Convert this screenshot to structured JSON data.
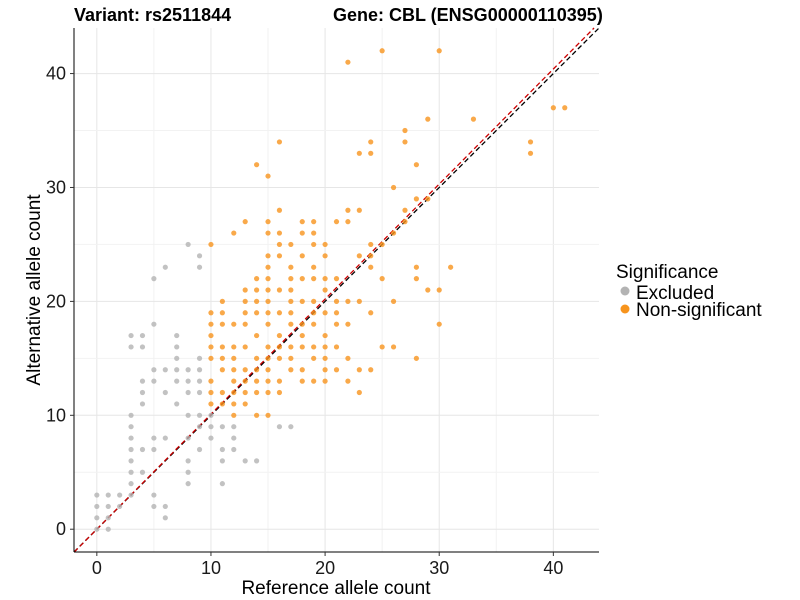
{
  "chart_data": {
    "type": "scatter",
    "title_left": "Variant: rs2511844",
    "title_right": "Gene: CBL (ENSG00000110395)",
    "xlabel": "Reference allele count",
    "ylabel": "Alternative allele count",
    "xlim": [
      -2,
      44
    ],
    "ylim": [
      -2,
      44
    ],
    "x_ticks": [
      0,
      10,
      20,
      30,
      40
    ],
    "y_ticks": [
      0,
      10,
      20,
      30,
      40
    ],
    "grid": true,
    "legend": {
      "title": "Significance",
      "position": "right",
      "entries": [
        {
          "label": "Excluded",
          "color": "#b3b3b3"
        },
        {
          "label": "Non-significant",
          "color": "#f7941d"
        }
      ]
    },
    "reference_lines": [
      {
        "slope": 1,
        "intercept": 0,
        "color": "#000000",
        "style": "dashed"
      },
      {
        "slope": 1.01,
        "intercept": 0,
        "color": "#cc0000",
        "style": "dashed"
      }
    ],
    "series": [
      {
        "name": "Excluded",
        "color": "#b3b3b3",
        "points": [
          [
            0,
            0
          ],
          [
            0,
            1
          ],
          [
            0,
            2
          ],
          [
            0,
            3
          ],
          [
            1,
            0
          ],
          [
            1,
            1
          ],
          [
            1,
            2
          ],
          [
            1,
            3
          ],
          [
            2,
            2
          ],
          [
            2,
            3
          ],
          [
            3,
            3
          ],
          [
            3,
            4
          ],
          [
            3,
            5
          ],
          [
            3,
            6
          ],
          [
            3,
            7
          ],
          [
            3,
            8
          ],
          [
            3,
            9
          ],
          [
            3,
            10
          ],
          [
            3,
            16
          ],
          [
            3,
            17
          ],
          [
            4,
            5
          ],
          [
            4,
            7
          ],
          [
            4,
            11
          ],
          [
            4,
            12
          ],
          [
            4,
            13
          ],
          [
            4,
            16
          ],
          [
            4,
            17
          ],
          [
            5,
            2
          ],
          [
            5,
            3
          ],
          [
            5,
            7
          ],
          [
            5,
            8
          ],
          [
            5,
            13
          ],
          [
            5,
            14
          ],
          [
            5,
            18
          ],
          [
            5,
            22
          ],
          [
            6,
            1
          ],
          [
            6,
            2
          ],
          [
            6,
            8
          ],
          [
            6,
            12
          ],
          [
            6,
            14
          ],
          [
            6,
            23
          ],
          [
            7,
            11
          ],
          [
            7,
            13
          ],
          [
            7,
            14
          ],
          [
            7,
            15
          ],
          [
            7,
            16
          ],
          [
            7,
            17
          ],
          [
            8,
            4
          ],
          [
            8,
            5
          ],
          [
            8,
            6
          ],
          [
            8,
            8
          ],
          [
            8,
            10
          ],
          [
            8,
            12
          ],
          [
            8,
            13
          ],
          [
            8,
            14
          ],
          [
            8,
            25
          ],
          [
            9,
            7
          ],
          [
            9,
            9
          ],
          [
            9,
            10
          ],
          [
            9,
            12
          ],
          [
            9,
            13
          ],
          [
            9,
            14
          ],
          [
            9,
            15
          ],
          [
            9,
            23
          ],
          [
            9,
            24
          ],
          [
            10,
            8
          ],
          [
            10,
            9
          ],
          [
            10,
            10
          ],
          [
            11,
            4
          ],
          [
            11,
            6
          ],
          [
            11,
            7
          ],
          [
            11,
            9
          ],
          [
            12,
            7
          ],
          [
            12,
            8
          ],
          [
            12,
            9
          ],
          [
            13,
            6
          ],
          [
            14,
            6
          ],
          [
            16,
            9
          ],
          [
            17,
            9
          ]
        ]
      },
      {
        "name": "Non-significant",
        "color": "#f7941d",
        "points": [
          [
            10,
            11
          ],
          [
            10,
            12
          ],
          [
            10,
            13
          ],
          [
            10,
            15
          ],
          [
            10,
            16
          ],
          [
            10,
            17
          ],
          [
            10,
            18
          ],
          [
            10,
            19
          ],
          [
            10,
            25
          ],
          [
            11,
            11
          ],
          [
            11,
            12
          ],
          [
            11,
            14
          ],
          [
            11,
            15
          ],
          [
            11,
            16
          ],
          [
            11,
            18
          ],
          [
            11,
            19
          ],
          [
            11,
            20
          ],
          [
            12,
            10
          ],
          [
            12,
            11
          ],
          [
            12,
            12
          ],
          [
            12,
            13
          ],
          [
            12,
            14
          ],
          [
            12,
            15
          ],
          [
            12,
            16
          ],
          [
            12,
            18
          ],
          [
            12,
            26
          ],
          [
            13,
            11
          ],
          [
            13,
            12
          ],
          [
            13,
            13
          ],
          [
            13,
            14
          ],
          [
            13,
            16
          ],
          [
            13,
            18
          ],
          [
            13,
            19
          ],
          [
            13,
            20
          ],
          [
            13,
            21
          ],
          [
            13,
            27
          ],
          [
            14,
            10
          ],
          [
            14,
            12
          ],
          [
            14,
            13
          ],
          [
            14,
            14
          ],
          [
            14,
            15
          ],
          [
            14,
            17
          ],
          [
            14,
            19
          ],
          [
            14,
            20
          ],
          [
            14,
            21
          ],
          [
            14,
            22
          ],
          [
            14,
            32
          ],
          [
            15,
            10
          ],
          [
            15,
            12
          ],
          [
            15,
            13
          ],
          [
            15,
            14
          ],
          [
            15,
            15
          ],
          [
            15,
            16
          ],
          [
            15,
            18
          ],
          [
            15,
            19
          ],
          [
            15,
            20
          ],
          [
            15,
            21
          ],
          [
            15,
            22
          ],
          [
            15,
            23
          ],
          [
            15,
            24
          ],
          [
            15,
            26
          ],
          [
            15,
            27
          ],
          [
            15,
            31
          ],
          [
            16,
            12
          ],
          [
            16,
            13
          ],
          [
            16,
            15
          ],
          [
            16,
            16
          ],
          [
            16,
            17
          ],
          [
            16,
            19
          ],
          [
            16,
            21
          ],
          [
            16,
            24
          ],
          [
            16,
            25
          ],
          [
            16,
            26
          ],
          [
            16,
            28
          ],
          [
            16,
            34
          ],
          [
            17,
            14
          ],
          [
            17,
            15
          ],
          [
            17,
            16
          ],
          [
            17,
            18
          ],
          [
            17,
            19
          ],
          [
            17,
            20
          ],
          [
            17,
            21
          ],
          [
            17,
            22
          ],
          [
            17,
            23
          ],
          [
            17,
            25
          ],
          [
            18,
            13
          ],
          [
            18,
            14
          ],
          [
            18,
            16
          ],
          [
            18,
            17
          ],
          [
            18,
            18
          ],
          [
            18,
            20
          ],
          [
            18,
            22
          ],
          [
            18,
            24
          ],
          [
            18,
            26
          ],
          [
            18,
            27
          ],
          [
            19,
            13
          ],
          [
            19,
            15
          ],
          [
            19,
            16
          ],
          [
            19,
            18
          ],
          [
            19,
            19
          ],
          [
            19,
            20
          ],
          [
            19,
            22
          ],
          [
            19,
            23
          ],
          [
            19,
            25
          ],
          [
            19,
            26
          ],
          [
            19,
            27
          ],
          [
            20,
            13
          ],
          [
            20,
            14
          ],
          [
            20,
            15
          ],
          [
            20,
            16
          ],
          [
            20,
            17
          ],
          [
            20,
            19
          ],
          [
            20,
            21
          ],
          [
            20,
            22
          ],
          [
            20,
            24
          ],
          [
            20,
            25
          ],
          [
            21,
            14
          ],
          [
            21,
            16
          ],
          [
            21,
            18
          ],
          [
            21,
            19
          ],
          [
            21,
            20
          ],
          [
            21,
            22
          ],
          [
            21,
            27
          ],
          [
            22,
            13
          ],
          [
            22,
            15
          ],
          [
            22,
            18
          ],
          [
            22,
            20
          ],
          [
            22,
            27
          ],
          [
            22,
            28
          ],
          [
            22,
            41
          ],
          [
            23,
            12
          ],
          [
            23,
            14
          ],
          [
            23,
            20
          ],
          [
            23,
            24
          ],
          [
            23,
            28
          ],
          [
            23,
            33
          ],
          [
            24,
            14
          ],
          [
            24,
            19
          ],
          [
            24,
            23
          ],
          [
            24,
            24
          ],
          [
            24,
            25
          ],
          [
            24,
            33
          ],
          [
            24,
            34
          ],
          [
            25,
            16
          ],
          [
            25,
            22
          ],
          [
            25,
            25
          ],
          [
            25,
            42
          ],
          [
            26,
            16
          ],
          [
            26,
            20
          ],
          [
            26,
            26
          ],
          [
            26,
            30
          ],
          [
            27,
            27
          ],
          [
            27,
            28
          ],
          [
            27,
            34
          ],
          [
            27,
            35
          ],
          [
            28,
            15
          ],
          [
            28,
            22
          ],
          [
            28,
            23
          ],
          [
            28,
            29
          ],
          [
            28,
            32
          ],
          [
            29,
            21
          ],
          [
            29,
            29
          ],
          [
            29,
            36
          ],
          [
            30,
            18
          ],
          [
            30,
            21
          ],
          [
            30,
            42
          ],
          [
            31,
            23
          ],
          [
            33,
            36
          ],
          [
            38,
            33
          ],
          [
            38,
            34
          ],
          [
            40,
            37
          ],
          [
            41,
            37
          ]
        ]
      }
    ]
  }
}
